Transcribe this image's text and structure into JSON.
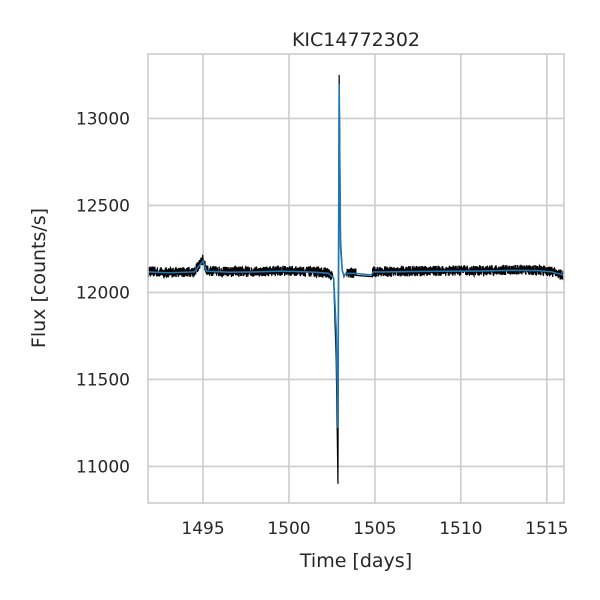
{
  "chart_data": {
    "type": "line",
    "title": "KIC14772302",
    "xlabel": "Time [days]",
    "ylabel": "Flux [counts/s]",
    "xlim": [
      1491.8,
      1516.0
    ],
    "ylim": [
      10790,
      13370
    ],
    "xticks": [
      1495,
      1500,
      1505,
      1510,
      1515
    ],
    "xtick_labels": [
      "1495",
      "1500",
      "1505",
      "1510",
      "1515"
    ],
    "yticks": [
      11000,
      11500,
      12000,
      12500,
      13000
    ],
    "ytick_labels": [
      "11000",
      "11500",
      "12000",
      "12500",
      "13000"
    ],
    "grid": true,
    "series": [
      {
        "style": "raw",
        "color": "#000000",
        "x": [
          1491.8,
          1493.0,
          1494.5,
          1495.0,
          1495.2,
          1496.5,
          1498.0,
          1499.5,
          1500.5,
          1501.5,
          1502.3,
          1502.6,
          1502.75,
          1502.85,
          1502.92,
          1503.0,
          1503.1,
          1503.2,
          1503.3,
          1503.5,
          1504.0,
          1504.8,
          1504.9,
          1505.5,
          1507.0,
          1509.0,
          1511.0,
          1513.0,
          1514.5,
          1515.3,
          1516.0
        ],
        "y": [
          12120,
          12115,
          12120,
          12190,
          12125,
          12118,
          12120,
          12125,
          12122,
          12118,
          12112,
          12080,
          11600,
          10900,
          13250,
          12300,
          12130,
          12090,
          12110,
          12112,
          12110,
          12100,
          12120,
          12120,
          12122,
          12125,
          12125,
          12130,
          12128,
          12120,
          12095
        ],
        "noise": 30
      },
      {
        "style": "trend",
        "color": "#1f77b4",
        "x": [
          1491.8,
          1493.0,
          1494.5,
          1495.0,
          1495.2,
          1496.5,
          1498.0,
          1499.5,
          1500.5,
          1501.5,
          1502.3,
          1502.6,
          1502.75,
          1502.85,
          1502.92,
          1503.0,
          1503.1,
          1503.2,
          1503.3,
          1503.5,
          1504.0,
          1504.8,
          1504.9,
          1505.5,
          1507.0,
          1509.0,
          1511.0,
          1513.0,
          1514.5,
          1515.3,
          1516.0
        ],
        "y": [
          12118,
          12113,
          12118,
          12180,
          12122,
          12116,
          12118,
          12122,
          12120,
          12116,
          12110,
          12082,
          11780,
          11220,
          13200,
          12260,
          12125,
          12095,
          12108,
          12110,
          12108,
          12100,
          12118,
          12118,
          12120,
          12122,
          12123,
          12127,
          12125,
          12118,
          12098
        ]
      }
    ]
  }
}
